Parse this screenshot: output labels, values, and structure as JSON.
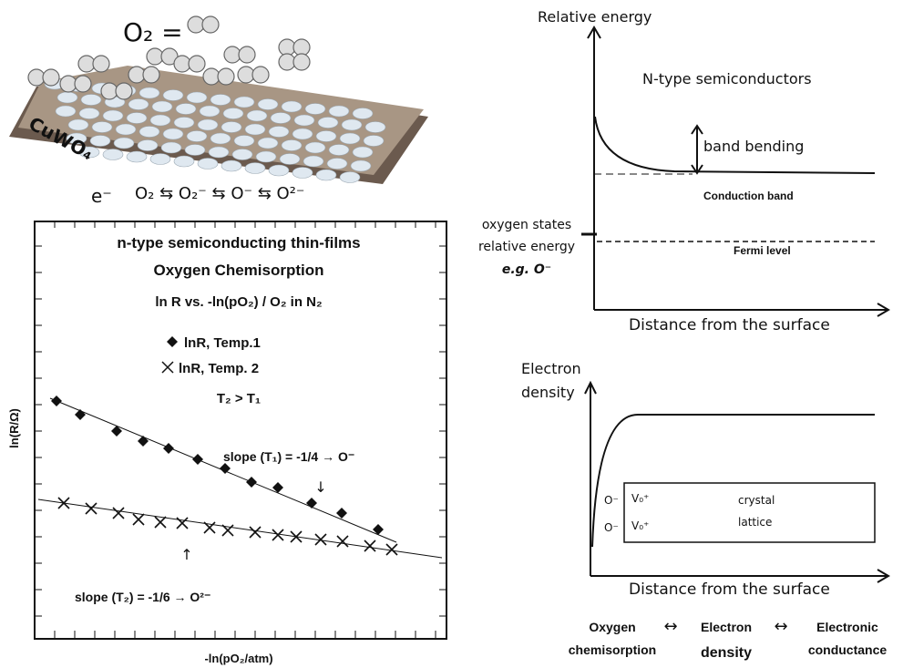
{
  "surface_panel": {
    "o2_label": "O₂ =",
    "film_label": "CuWO₄",
    "electron": "e⁻",
    "reaction": "O₂ ⇆ O₂⁻ ⇆ O⁻ ⇆ O²⁻"
  },
  "plot": {
    "title_lines": [
      "n-type semiconducting thin-films",
      "Oxygen Chemisorption",
      "ln R vs. -ln(pO₂)  / O₂ in N₂"
    ],
    "legend": [
      "lnR, Temp.1",
      "lnR, Temp. 2"
    ],
    "condition": "T₂ > T₁",
    "slope_1": "slope (T₁) = -1/4 → O⁻",
    "slope_2": "slope (T₂) = -1/6 → O²⁻",
    "y_label": "ln(R/Ω)",
    "x_label": "-ln(pO₂/atm)"
  },
  "energy_diagram": {
    "y_label": "Relative energy",
    "title": "N-type semiconductors",
    "band_bending": "band bending",
    "conduction_band": "Conduction band",
    "fermi_level": "Fermi level",
    "oxygen_states": [
      "oxygen states",
      "relative energy",
      "e.g. O⁻"
    ],
    "x_label": "Distance from the surface"
  },
  "density_diagram": {
    "y_label": [
      "Electron",
      "density"
    ],
    "lattice": [
      "crystal",
      "lattice"
    ],
    "surface_species": [
      "O⁻",
      "O⁻"
    ],
    "vacancies": [
      "V₀⁺",
      "V₀⁺"
    ],
    "x_label": "Distance from the surface"
  },
  "relation": {
    "terms": [
      [
        "Oxygen",
        "chemisorption"
      ],
      [
        "Electron",
        "density"
      ],
      [
        "Electronic",
        "conductance"
      ]
    ],
    "arrows": [
      "↔",
      "↔"
    ]
  }
}
